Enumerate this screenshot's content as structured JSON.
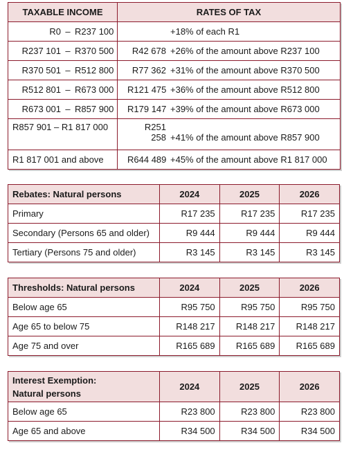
{
  "tax_table": {
    "header_income": "TAXABLE INCOME",
    "header_rates": "RATES OF TAX",
    "rows": [
      {
        "from": "R0",
        "sep": "–",
        "to": "R237 100",
        "base": "",
        "rate": "+18% of each R1"
      },
      {
        "from": "R237 101",
        "sep": "–",
        "to": "R370 500",
        "base": "R42 678",
        "rate": "+26% of the amount above R237 100"
      },
      {
        "from": "R370 501",
        "sep": "–",
        "to": "R512 800",
        "base": "R77 362",
        "rate": "+31% of the amount above R370 500"
      },
      {
        "from": "R512 801",
        "sep": "–",
        "to": "R673 000",
        "base": "R121 475",
        "rate": "+36% of the amount above R512 800"
      },
      {
        "from": "R673 001",
        "sep": "–",
        "to": "R857 900",
        "base": "R179 147",
        "rate": "+39% of the amount above R673 000"
      },
      {
        "from": "R857 901",
        "sep": "–",
        "to": "R1 817 000",
        "base": "R251 258",
        "rate": "+41% of the amount above R857 900"
      },
      {
        "from": "R1 817 001",
        "sep": "",
        "to": "and above",
        "base": "R644 489",
        "rate": "+45% of the amount above R1 817 000"
      }
    ]
  },
  "rebates": {
    "title": "Rebates: Natural persons",
    "years": [
      "2024",
      "2025",
      "2026"
    ],
    "rows": [
      {
        "label": "Primary",
        "values": [
          "R17 235",
          "R17 235",
          "R17 235"
        ]
      },
      {
        "label": "Secondary (Persons 65 and older)",
        "values": [
          "R9 444",
          "R9 444",
          "R9 444"
        ]
      },
      {
        "label": "Tertiary (Persons 75 and older)",
        "values": [
          "R3 145",
          "R3 145",
          "R3 145"
        ]
      }
    ]
  },
  "thresholds": {
    "title": "Thresholds: Natural persons",
    "years": [
      "2024",
      "2025",
      "2026"
    ],
    "rows": [
      {
        "label": "Below age 65",
        "values": [
          "R95 750",
          "R95 750",
          "R95 750"
        ]
      },
      {
        "label": "Age 65 to below 75",
        "values": [
          "R148 217",
          "R148 217",
          "R148 217"
        ]
      },
      {
        "label": "Age 75 and over",
        "values": [
          "R165 689",
          "R165 689",
          "R165 689"
        ]
      }
    ]
  },
  "interest": {
    "title_line1": "Interest Exemption:",
    "title_line2": "Natural persons",
    "years": [
      "2024",
      "2025",
      "2026"
    ],
    "rows": [
      {
        "label": "Below age 65",
        "values": [
          "R23 800",
          "R23 800",
          "R23 800"
        ]
      },
      {
        "label": "Age 65 and above",
        "values": [
          "R34 500",
          "R34 500",
          "R34 500"
        ]
      }
    ]
  },
  "colors": {
    "border": "#8b1a2b",
    "header_bg": "#f2dede"
  }
}
